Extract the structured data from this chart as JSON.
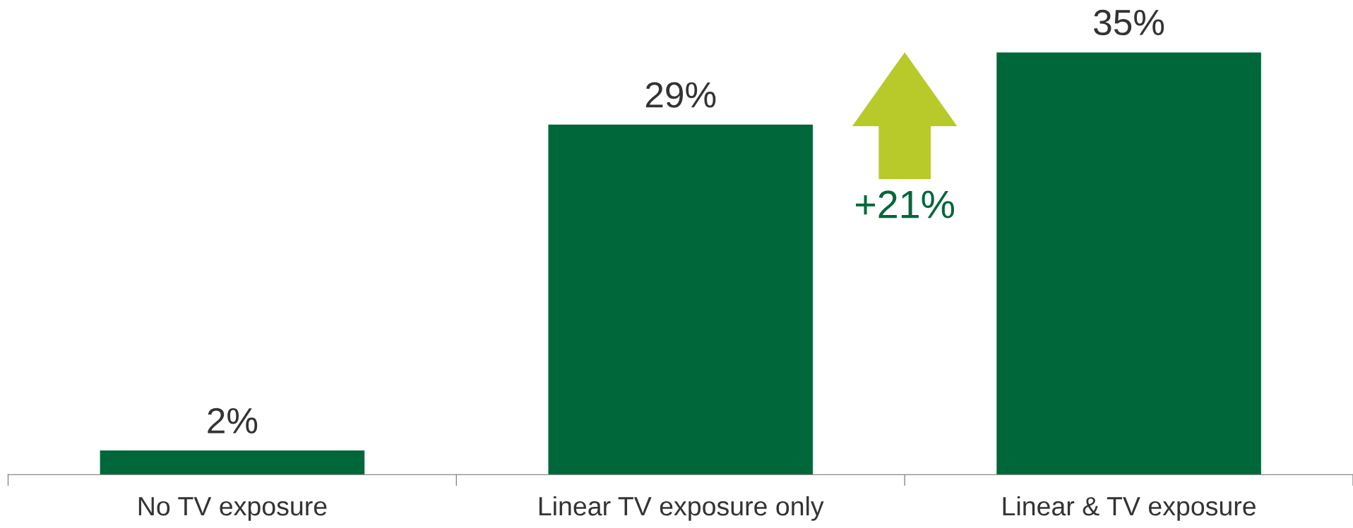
{
  "chart_data": {
    "type": "bar",
    "categories": [
      "No TV exposure",
      "Linear TV exposure only",
      "Linear & TV exposure"
    ],
    "values": [
      2,
      29,
      35
    ],
    "color": "#00673a",
    "value_labels": [
      "2%",
      "29%",
      "35%"
    ],
    "annotations": [
      "+21%"
    ],
    "grid": false,
    "legend": false
  }
}
